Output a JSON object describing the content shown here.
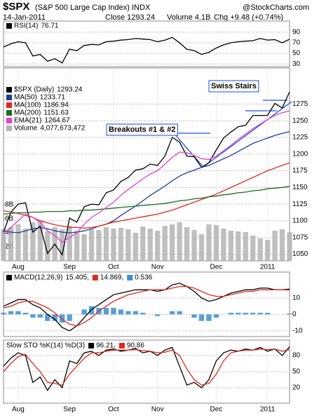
{
  "header": {
    "symbol": "$SPX",
    "name": "(S&P 500 Large Cap Index) INDX",
    "source": "@StockCharts.com",
    "date": "14-Jan-2011",
    "close": "Close 1293.24",
    "volume": "Volume 4.1B",
    "change": "Chg +9.48 (+0.74%)"
  },
  "chart_data": [
    {
      "type": "line",
      "ylim": [
        25,
        111
      ],
      "yticks": [
        90,
        70,
        50,
        30
      ],
      "series": [
        {
          "name": "RSI(14)",
          "legend_value": "76.71",
          "color": "#000000",
          "values": [
            62,
            68,
            72,
            70,
            45,
            48,
            35,
            40,
            32,
            58,
            55,
            65,
            67,
            66,
            72,
            73,
            75,
            76,
            78,
            77,
            76,
            72,
            75,
            80,
            70,
            58,
            55,
            48,
            52,
            60,
            66,
            70,
            72,
            73,
            74,
            78,
            75,
            76,
            70,
            76.71
          ]
        }
      ]
    },
    {
      "type": "line",
      "categories": [
        null,
        null,
        "Aug",
        null,
        null,
        null,
        null,
        null,
        null,
        "Sep",
        null,
        null,
        null,
        null,
        null,
        "Oct",
        null,
        null,
        null,
        null,
        null,
        "Nov",
        null,
        null,
        null,
        null,
        null,
        null,
        null,
        "Dec",
        null,
        null,
        null,
        null,
        null,
        null,
        "2011",
        null,
        null,
        null
      ],
      "ylim": [
        1040,
        1329
      ],
      "yticks": [
        1275,
        1250,
        1225,
        1200,
        1175,
        1150,
        1125,
        1100,
        1075,
        1050
      ],
      "y2lim": [
        0,
        27.5
      ],
      "y2ticks": [
        {
          "value": 2,
          "label": "2B"
        },
        {
          "value": 4,
          "label": "4B"
        },
        {
          "value": 6,
          "label": "6B"
        },
        {
          "value": 8,
          "label": "8B"
        }
      ],
      "annotations": [
        "Swiss Stairs",
        "Breakouts #1 & #2"
      ],
      "series": [
        {
          "name": "$SPX (Daily)",
          "legend_value": "1293.24",
          "color": "#000000",
          "values": [
            1083,
            1113,
            1125,
            1127,
            1083,
            1092,
            1051,
            1065,
            1049,
            1104,
            1098,
            1121,
            1125,
            1124,
            1142,
            1146,
            1159,
            1165,
            1176,
            1178,
            1185,
            1183,
            1197,
            1225,
            1218,
            1197,
            1196,
            1180,
            1187,
            1206,
            1224,
            1233,
            1241,
            1243,
            1258,
            1258,
            1258,
            1276,
            1269,
            1293.24
          ]
        },
        {
          "name": "MA(50)",
          "legend_value": "1233.71",
          "color": "#1c3f94",
          "values": [
            1085,
            1083,
            1082,
            1085,
            1088,
            1090,
            1088,
            1085,
            1083,
            1082,
            1083,
            1085,
            1088,
            1092,
            1095,
            1100,
            1108,
            1115,
            1122,
            1130,
            1138,
            1145,
            1152,
            1160,
            1167,
            1172,
            1176,
            1180,
            1183,
            1188,
            1193,
            1198,
            1204,
            1210,
            1216,
            1220,
            1224,
            1228,
            1231,
            1233.71
          ]
        },
        {
          "name": "MA(100)",
          "legend_value": "1186.94",
          "color": "#e0281e",
          "values": [
            1115,
            1113,
            1111,
            1108,
            1105,
            1100,
            1097,
            1094,
            1092,
            1090,
            1090,
            1089,
            1090,
            1092,
            1095,
            1098,
            1100,
            1102,
            1104,
            1106,
            1108,
            1110,
            1113,
            1116,
            1120,
            1124,
            1128,
            1132,
            1136,
            1140,
            1145,
            1150,
            1155,
            1160,
            1165,
            1170,
            1175,
            1179,
            1183,
            1186.94
          ]
        },
        {
          "name": "MA(200)",
          "legend_value": "1151.63",
          "color": "#1e6b1e",
          "values": [
            1110,
            1111,
            1112,
            1112,
            1113,
            1113,
            1114,
            1114,
            1114,
            1115,
            1115,
            1116,
            1116,
            1117,
            1118,
            1119,
            1120,
            1121,
            1122,
            1123,
            1124,
            1125,
            1126,
            1128,
            1130,
            1131,
            1133,
            1134,
            1136,
            1137,
            1139,
            1140,
            1142,
            1143,
            1145,
            1146,
            1148,
            1149,
            1150,
            1151.63
          ]
        },
        {
          "name": "EMA(21)",
          "legend_value": "1264.67",
          "color": "#e040d0",
          "values": [
            1080,
            1090,
            1100,
            1110,
            1105,
            1098,
            1085,
            1078,
            1068,
            1075,
            1082,
            1095,
            1105,
            1112,
            1120,
            1128,
            1138,
            1147,
            1155,
            1163,
            1170,
            1175,
            1185,
            1195,
            1203,
            1202,
            1198,
            1193,
            1192,
            1197,
            1205,
            1213,
            1222,
            1230,
            1238,
            1245,
            1252,
            1258,
            1262,
            1264.67
          ]
        },
        {
          "name": "Volume",
          "legend_value": "4,077,673,472",
          "color": "#b4b4b4",
          "type": "bar",
          "axis": "y2",
          "values": [
            4.5,
            4.8,
            5.2,
            4.6,
            5.5,
            5.8,
            4.2,
            4.8,
            4.5,
            5.0,
            4.3,
            3.8,
            4.5,
            4.4,
            4.8,
            4.6,
            4.7,
            4.5,
            4.0,
            4.9,
            4.6,
            4.3,
            5.0,
            5.2,
            5.5,
            4.8,
            4.4,
            3.8,
            5.2,
            5.1,
            4.6,
            4.3,
            4.2,
            4.1,
            3.6,
            3.2,
            3.0,
            4.3,
            4.5,
            4.077673472
          ]
        }
      ]
    },
    {
      "type": "line",
      "ylim": [
        -13.5,
        25.8
      ],
      "yticks": [
        10,
        0,
        -10
      ],
      "series": [
        {
          "name": "MACD(12,26,9)",
          "legend_value": "15.405,",
          "color": "#000000",
          "values": [
            5,
            7,
            9,
            9,
            6,
            4,
            0,
            -3,
            -8,
            -10,
            -7,
            -2,
            3,
            6,
            9,
            12,
            13,
            14,
            15,
            15,
            15,
            14,
            15,
            18,
            19,
            17,
            14,
            10,
            8,
            9,
            11,
            13,
            14,
            15,
            15,
            16,
            16,
            15,
            15,
            15.405
          ]
        },
        {
          "legend_value": "14.869,",
          "color": "#e0281e",
          "values": [
            4,
            5,
            7,
            8,
            8,
            6,
            4,
            1,
            -3,
            -6,
            -7,
            -5,
            -2,
            2,
            5,
            8,
            10,
            12,
            13,
            14,
            15,
            15,
            15,
            16,
            17,
            17,
            16,
            14,
            12,
            11,
            11,
            12,
            13,
            14,
            14,
            15,
            15,
            15,
            15,
            14.869
          ]
        },
        {
          "legend_value": "0.536",
          "color": "#3a8fd0",
          "type": "bar",
          "values": [
            1,
            2,
            2,
            1,
            -2,
            -2,
            -4,
            -4,
            -5,
            -4,
            0,
            3,
            5,
            4,
            4,
            4,
            3,
            2,
            2,
            1,
            0,
            -1,
            0,
            2,
            2,
            0,
            -2,
            -4,
            -4,
            -2,
            0,
            1,
            1,
            1,
            1,
            1,
            1,
            0,
            0,
            0.536
          ]
        }
      ]
    },
    {
      "type": "line",
      "title": "Slow STO %K(14) %D(3)",
      "categories": [
        null,
        null,
        "Aug",
        null,
        null,
        null,
        null,
        null,
        null,
        "Sep",
        null,
        null,
        null,
        null,
        null,
        "Oct",
        null,
        null,
        null,
        null,
        null,
        "Nov",
        null,
        null,
        null,
        null,
        null,
        null,
        null,
        "Dec",
        null,
        null,
        null,
        null,
        null,
        null,
        "2011",
        null,
        null,
        null
      ],
      "ylim": [
        -8.7,
        108.7
      ],
      "yticks": [
        80,
        50,
        20
      ],
      "series": [
        {
          "legend_value": "96.21,",
          "color": "#000000",
          "values": [
            60,
            75,
            85,
            80,
            30,
            40,
            15,
            35,
            20,
            70,
            65,
            85,
            88,
            80,
            90,
            92,
            88,
            90,
            93,
            85,
            88,
            80,
            90,
            95,
            60,
            25,
            30,
            20,
            35,
            70,
            85,
            90,
            88,
            92,
            90,
            95,
            88,
            92,
            80,
            96.21
          ]
        },
        {
          "legend_value": "90.86",
          "color": "#e0281e",
          "values": [
            50,
            65,
            78,
            82,
            65,
            50,
            30,
            28,
            25,
            45,
            60,
            75,
            85,
            85,
            88,
            90,
            90,
            90,
            91,
            89,
            88,
            85,
            86,
            90,
            80,
            55,
            35,
            25,
            28,
            45,
            70,
            85,
            88,
            90,
            90,
            92,
            91,
            92,
            88,
            90.86
          ]
        }
      ]
    }
  ]
}
